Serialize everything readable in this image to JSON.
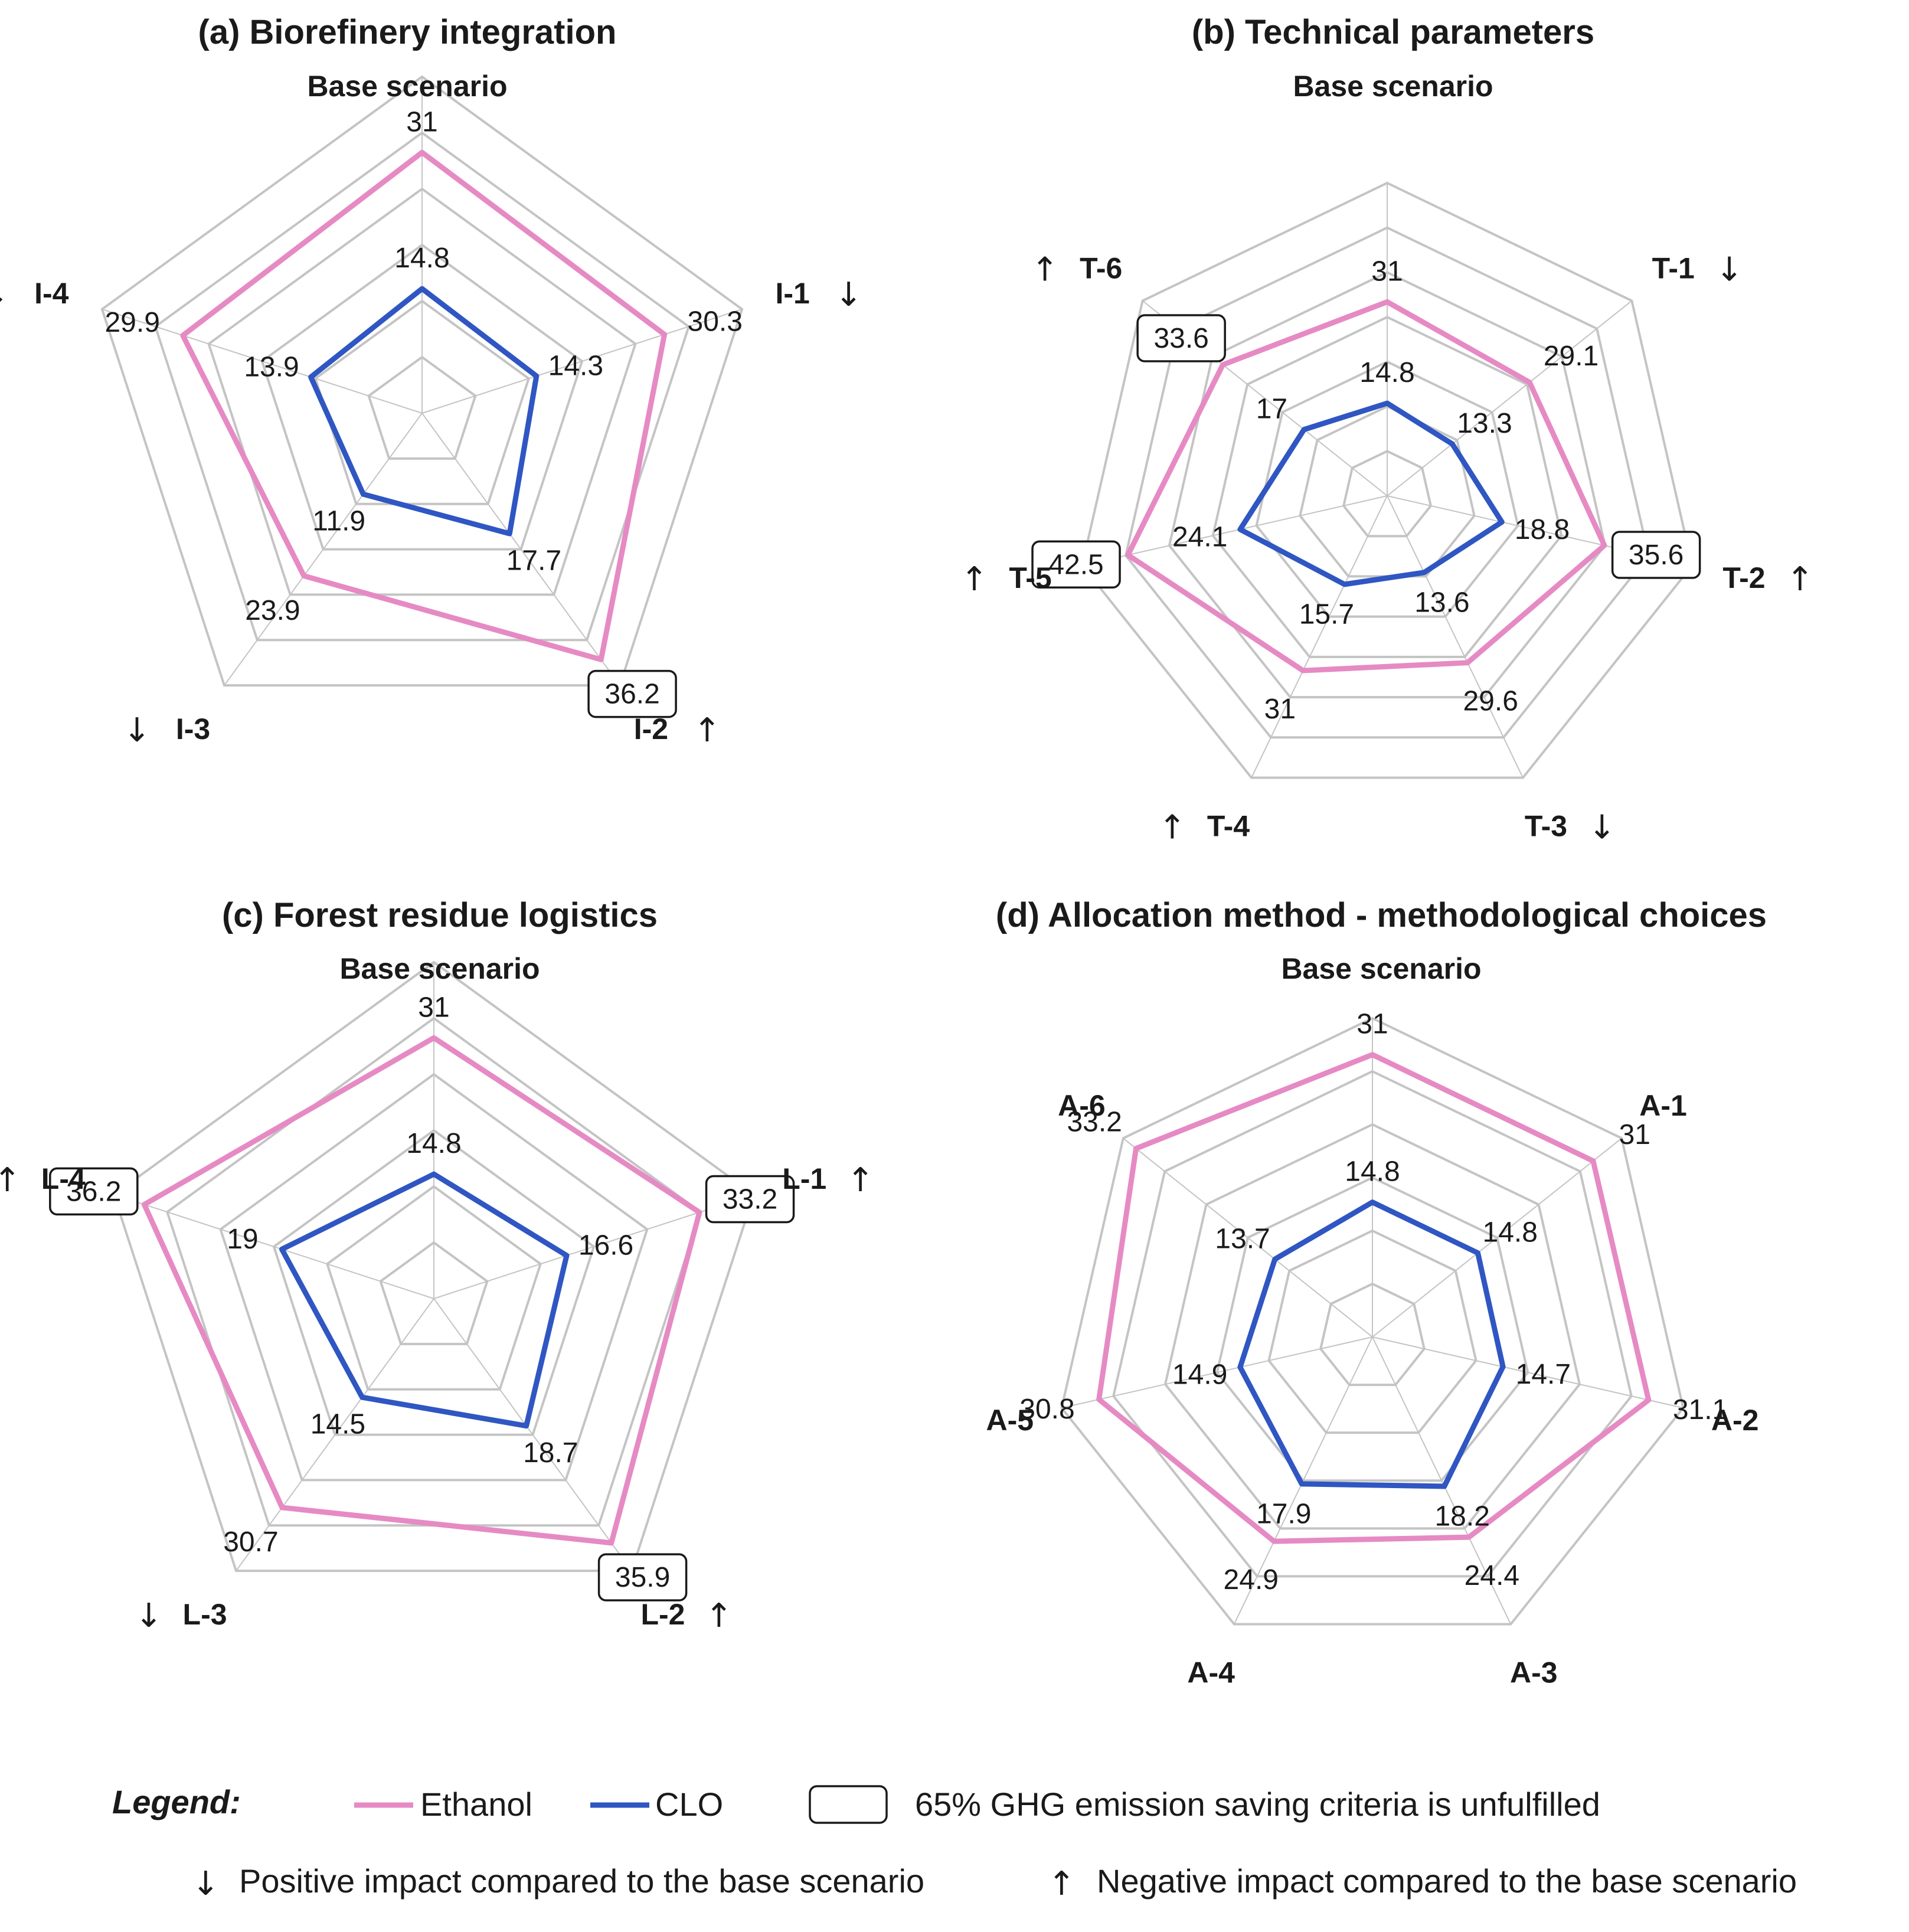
{
  "chart_data": [
    {
      "type": "radar",
      "title": "(a) Biorefinery integration",
      "axes": [
        "Base scenario",
        "I-1",
        "I-2",
        "I-3",
        "I-4"
      ],
      "arrows": [
        "",
        "↓",
        "↑",
        "↓",
        "↓"
      ],
      "series": [
        {
          "name": "Ethanol",
          "values": [
            31,
            30.3,
            36.2,
            23.9,
            29.9
          ],
          "boxed": [
            false,
            false,
            true,
            false,
            false
          ]
        },
        {
          "name": "CLO",
          "values": [
            14.8,
            14.3,
            17.7,
            11.9,
            13.9
          ]
        }
      ],
      "rmax": 40,
      "rings": 6
    },
    {
      "type": "radar",
      "title": "(b) Technical parameters",
      "axes": [
        "Base scenario",
        "T-1",
        "T-2",
        "T-3",
        "T-4",
        "T-5",
        "T-6"
      ],
      "arrows": [
        "",
        "↓",
        "↑",
        "↓",
        "↑",
        "↑",
        "↑"
      ],
      "series": [
        {
          "name": "Ethanol",
          "values": [
            31,
            29.1,
            35.6,
            29.6,
            31,
            42.5,
            33.6
          ],
          "boxed": [
            false,
            false,
            true,
            false,
            false,
            true,
            true
          ]
        },
        {
          "name": "CLO",
          "values": [
            14.8,
            13.3,
            18.8,
            13.6,
            15.7,
            24.1,
            17
          ]
        }
      ],
      "rmax": 50,
      "rings": 7
    },
    {
      "type": "radar",
      "title": "(c) Forest residue logistics",
      "axes": [
        "Base scenario",
        "L-1",
        "L-2",
        "L-3",
        "L-4"
      ],
      "arrows": [
        "",
        "↑",
        "↑",
        "↓",
        "↑"
      ],
      "series": [
        {
          "name": "Ethanol",
          "values": [
            31,
            33.2,
            35.9,
            30.7,
            36.2
          ],
          "boxed": [
            false,
            true,
            true,
            false,
            true
          ]
        },
        {
          "name": "CLO",
          "values": [
            14.8,
            16.6,
            18.7,
            14.5,
            19
          ]
        }
      ],
      "rmax": 40,
      "rings": 6
    },
    {
      "type": "radar",
      "title": "(d) Allocation method - methodological choices",
      "axes": [
        "Base scenario",
        "A-1",
        "A-2",
        "A-3",
        "A-4",
        "A-5",
        "A-6"
      ],
      "arrows": [
        "",
        "",
        "",
        "",
        "",
        "",
        ""
      ],
      "series": [
        {
          "name": "Ethanol",
          "values": [
            31,
            31,
            31.1,
            24.4,
            24.9,
            30.8,
            33.2
          ],
          "boxed": [
            false,
            false,
            false,
            false,
            false,
            false,
            false
          ]
        },
        {
          "name": "CLO",
          "values": [
            14.8,
            14.8,
            14.7,
            18.2,
            17.9,
            14.9,
            13.7
          ]
        }
      ],
      "rmax": 35,
      "rings": 6
    }
  ],
  "colors": {
    "Ethanol": "#e68ac4",
    "CLO": "#2f56c2",
    "grid": "#c4c4c4"
  },
  "legend": {
    "title": "Legend:",
    "ethanol": "Ethanol",
    "clo": "CLO",
    "box_note": "65% GHG emission saving criteria is unfulfilled",
    "down_arrow": "↓",
    "down_note": "Positive impact compared to the base scenario",
    "up_arrow": "↑",
    "up_note": "Negative impact compared to the base scenario"
  }
}
